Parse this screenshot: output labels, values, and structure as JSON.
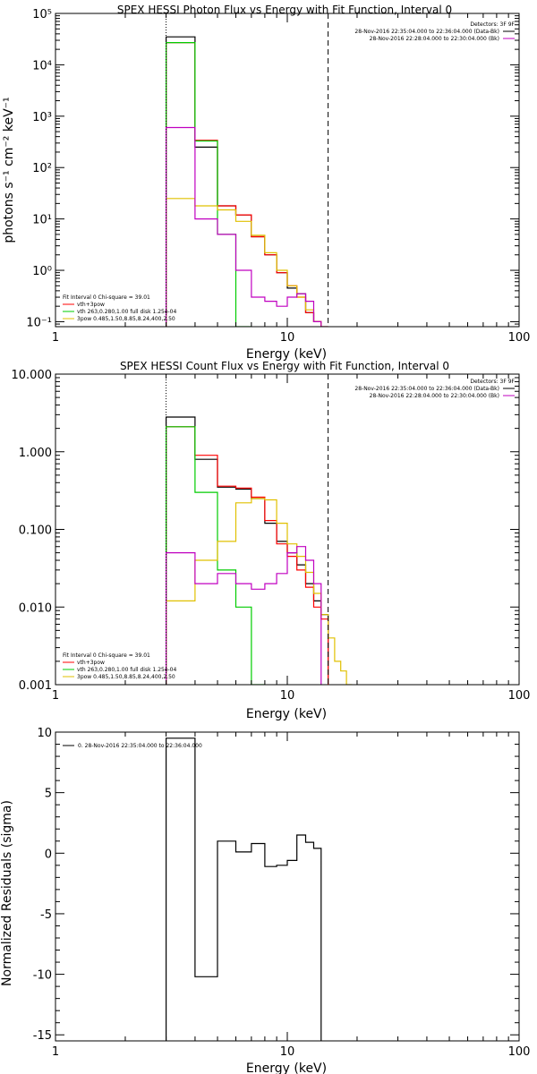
{
  "chart_data": [
    {
      "type": "line",
      "title": "SPEX HESSI Photon Flux vs Energy with Fit Function, Interval 0",
      "xlabel": "Energy (keV)",
      "ylabel": "photons s⁻¹ cm⁻² keV⁻¹",
      "xscale": "log",
      "yscale": "log",
      "xlim": [
        1,
        100
      ],
      "ylim": [
        0.08,
        100000
      ],
      "xticks": [
        1,
        10,
        100
      ],
      "xticklabels": [
        "1",
        "10",
        "100"
      ],
      "yticks": [
        0.1,
        1,
        10,
        100,
        1000,
        10000,
        100000
      ],
      "yticklabels": [
        "10⁻¹",
        "10⁰",
        "10¹",
        "10²",
        "10³",
        "10⁴",
        "10⁵"
      ],
      "vlines": [
        {
          "x": 3,
          "style": "dotted"
        },
        {
          "x": 15,
          "style": "dashed"
        }
      ],
      "legend_top": {
        "placement": "top-right",
        "entries": [
          {
            "text": "Detectors: 3F 9F",
            "color": ""
          },
          {
            "text": "28-Nov-2016 22:35:04.000 to 22:36:04.000 (Data-Bk)",
            "color": "#000000"
          },
          {
            "text": "28-Nov-2016 22:28:04.000 to 22:30:04.000 (Bk)",
            "color": "#c000c0"
          }
        ]
      },
      "legend_bottom": {
        "placement": "bottom-left",
        "entries": [
          {
            "text": "Fit Interval 0   Chi-square = 39.01",
            "color": ""
          },
          {
            "text": "vth+3pow",
            "color": "#ff0000"
          },
          {
            "text": "vth 263,0.280,1.00  full disk 1.25e-04",
            "color": "#00cc00"
          },
          {
            "text": "3pow 0.485,1.50,8.85,8.24,400,2.50",
            "color": "#e0c000"
          }
        ]
      },
      "bin_edges": [
        3,
        4,
        5,
        6,
        7,
        8,
        9,
        10,
        11,
        12,
        13,
        14,
        15,
        16,
        17,
        18,
        19,
        20
      ],
      "series": [
        {
          "color": "#000000",
          "values": [
            35000,
            250,
            18,
            12,
            4.5,
            2,
            0.9,
            0.45,
            0.35,
            0.15,
            0.1
          ]
        },
        {
          "color": "#ff0000",
          "values": [
            27000,
            340,
            18,
            12,
            4.5,
            2,
            0.9,
            0.5,
            0.3,
            0.15,
            0.1
          ]
        },
        {
          "color": "#00cc00",
          "values": [
            27000,
            330,
            5,
            0.07
          ]
        },
        {
          "color": "#e0c000",
          "values": [
            25,
            18,
            15,
            9,
            4.8,
            2.2,
            1,
            0.5,
            0.3,
            0.17,
            0.1,
            0.07
          ]
        },
        {
          "color": "#c000c0",
          "values": [
            600,
            10,
            5,
            1,
            0.3,
            0.25,
            0.2,
            0.3,
            0.35,
            0.25,
            0.1,
            0.07
          ]
        }
      ]
    },
    {
      "type": "line",
      "title": "SPEX HESSI Count Flux vs Energy with Fit Function, Interval 0",
      "xlabel": "Energy (keV)",
      "ylabel": "",
      "xscale": "log",
      "yscale": "log",
      "xlim": [
        1,
        100
      ],
      "ylim": [
        0.001,
        10
      ],
      "xticks": [
        1,
        10,
        100
      ],
      "xticklabels": [
        "1",
        "10",
        "100"
      ],
      "yticks": [
        0.001,
        0.01,
        0.1,
        1,
        10
      ],
      "yticklabels": [
        "0.001",
        "0.010",
        "0.100",
        "1.000",
        "10.000"
      ],
      "vlines": [
        {
          "x": 3,
          "style": "dotted"
        },
        {
          "x": 15,
          "style": "dashed"
        }
      ],
      "legend_top": {
        "placement": "top-right",
        "entries": [
          {
            "text": "Detectors: 3F 9F",
            "color": ""
          },
          {
            "text": "28-Nov-2016 22:35:04.000 to 22:36:04.000 (Data-Bk)",
            "color": "#000000"
          },
          {
            "text": "28-Nov-2016 22:28:04.000 to 22:30:04.000 (Bk)",
            "color": "#c000c0"
          }
        ]
      },
      "legend_bottom": {
        "placement": "bottom-left",
        "entries": [
          {
            "text": "Fit Interval 0   Chi-square = 39.01",
            "color": ""
          },
          {
            "text": "vth+3pow",
            "color": "#ff0000"
          },
          {
            "text": "vth 263,0.280,1.00  full disk 1.25e-04",
            "color": "#00cc00"
          },
          {
            "text": "3pow 0.485,1.50,8.85,8.24,400,2.50",
            "color": "#e0c000"
          }
        ]
      },
      "bin_edges": [
        3,
        4,
        5,
        6,
        7,
        8,
        9,
        10,
        11,
        12,
        13,
        14,
        15,
        16,
        17,
        18,
        19,
        20
      ],
      "series": [
        {
          "color": "#000000",
          "values": [
            2.8,
            0.8,
            0.35,
            0.33,
            0.25,
            0.12,
            0.07,
            0.05,
            0.035,
            0.02,
            0.012,
            0.008
          ]
        },
        {
          "color": "#ff0000",
          "values": [
            2.1,
            0.9,
            0.36,
            0.34,
            0.26,
            0.13,
            0.065,
            0.045,
            0.03,
            0.018,
            0.01,
            0.007
          ]
        },
        {
          "color": "#00cc00",
          "values": [
            2.1,
            0.3,
            0.03,
            0.01,
            0.0005
          ]
        },
        {
          "color": "#e0c000",
          "values": [
            0.012,
            0.04,
            0.07,
            0.22,
            0.25,
            0.24,
            0.12,
            0.065,
            0.045,
            0.028,
            0.015,
            0.008,
            0.004,
            0.002,
            0.0015,
            0.001
          ]
        },
        {
          "color": "#c000c0",
          "values": [
            0.05,
            0.02,
            0.027,
            0.02,
            0.017,
            0.02,
            0.027,
            0.05,
            0.06,
            0.04,
            0.02
          ]
        }
      ]
    },
    {
      "type": "line",
      "title": "",
      "xlabel": "Energy (keV)",
      "ylabel": "Normalized Residuals (sigma)",
      "xscale": "log",
      "yscale": "linear",
      "xlim": [
        1,
        100
      ],
      "ylim": [
        -15.5,
        10
      ],
      "xticks": [
        1,
        10,
        100
      ],
      "xticklabels": [
        "1",
        "10",
        "100"
      ],
      "yticks": [
        -15,
        -10,
        -5,
        0,
        5,
        10
      ],
      "yticklabels": [
        "-15",
        "-10",
        "-5",
        "0",
        "5",
        "10"
      ],
      "legend_top": {
        "placement": "top-left",
        "entries": [
          {
            "text": "0. 28-Nov-2016 22:35:04.000 to 22:36:04.000",
            "color": "#000000"
          }
        ]
      },
      "bin_edges": [
        3,
        4,
        5,
        6,
        7,
        8,
        9,
        10,
        11,
        12,
        13,
        14,
        15
      ],
      "series": [
        {
          "color": "#000000",
          "values": [
            9.5,
            -10.2,
            1.0,
            0.1,
            0.8,
            -1.1,
            -1.0,
            -0.6,
            1.5,
            0.9,
            0.4
          ]
        }
      ]
    }
  ]
}
